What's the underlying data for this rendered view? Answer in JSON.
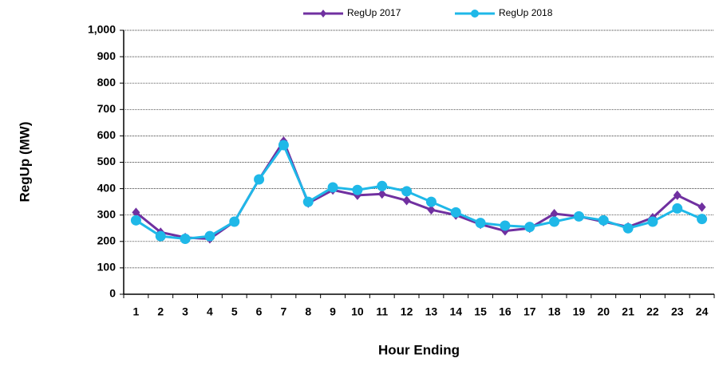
{
  "chart_data": {
    "type": "line",
    "x_label": "Hour Ending",
    "y_label": "RegUp (MW)",
    "categories": [
      "1",
      "2",
      "3",
      "4",
      "5",
      "6",
      "7",
      "8",
      "9",
      "10",
      "11",
      "12",
      "13",
      "14",
      "15",
      "16",
      "17",
      "18",
      "19",
      "20",
      "21",
      "22",
      "23",
      "24"
    ],
    "series": [
      {
        "name": "RegUp 2017",
        "color": "#7030a0",
        "marker": "diamond",
        "values": [
          310,
          235,
          215,
          210,
          275,
          435,
          580,
          345,
          395,
          375,
          380,
          355,
          320,
          300,
          265,
          240,
          250,
          305,
          295,
          275,
          255,
          290,
          375,
          330
        ]
      },
      {
        "name": "RegUp 2018",
        "color": "#1fb8e8",
        "marker": "circle",
        "values": [
          280,
          220,
          210,
          220,
          275,
          435,
          565,
          350,
          405,
          395,
          410,
          390,
          350,
          310,
          270,
          260,
          255,
          275,
          295,
          280,
          250,
          275,
          325,
          285
        ]
      }
    ],
    "ylim": [
      0,
      1000
    ],
    "yticks": [
      0,
      100,
      200,
      300,
      400,
      500,
      600,
      700,
      800,
      900,
      {
        "value": 1000,
        "label": "1,000"
      }
    ],
    "grid": true,
    "legend": "top"
  }
}
